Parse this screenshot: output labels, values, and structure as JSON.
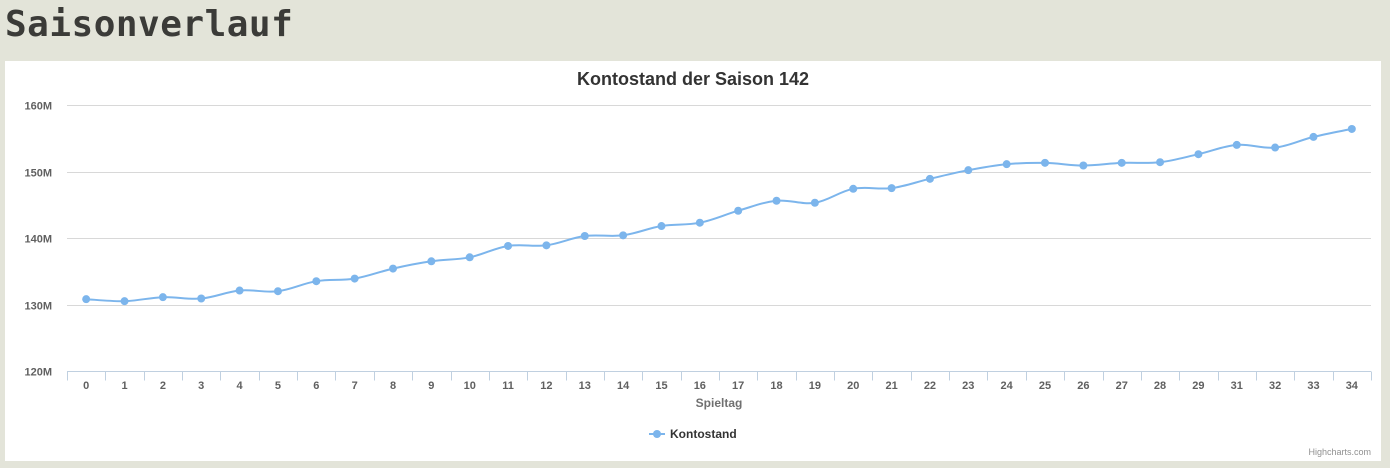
{
  "page": {
    "heading": "Saisonverlauf"
  },
  "colors": {
    "series": "#7cb5ec",
    "grid": "#d8d8d8",
    "axis": "#c0d0e0",
    "background": "#e3e4d9"
  },
  "chart_data": {
    "type": "line",
    "title": "Kontostand der Saison 142",
    "xlabel": "Spieltag",
    "ylabel": "",
    "categories": [
      "0",
      "1",
      "2",
      "3",
      "4",
      "5",
      "6",
      "7",
      "8",
      "9",
      "10",
      "11",
      "12",
      "13",
      "14",
      "15",
      "16",
      "17",
      "18",
      "19",
      "20",
      "21",
      "22",
      "23",
      "24",
      "25",
      "26",
      "27",
      "28",
      "29",
      "31",
      "32",
      "33",
      "34"
    ],
    "series": [
      {
        "name": "Kontostand",
        "values": [
          130.8,
          130.5,
          131.1,
          130.9,
          132.1,
          132.0,
          133.5,
          133.9,
          135.4,
          136.5,
          137.1,
          138.8,
          138.9,
          140.3,
          140.4,
          141.8,
          142.3,
          144.1,
          145.6,
          145.3,
          147.4,
          147.5,
          148.9,
          150.2,
          151.1,
          151.3,
          150.9,
          151.3,
          151.4,
          152.6,
          154.0,
          153.6,
          155.2,
          156.4
        ]
      }
    ],
    "ylim": [
      120,
      160
    ],
    "yticks": [
      {
        "value": 120,
        "label": "120M"
      },
      {
        "value": 130,
        "label": "130M"
      },
      {
        "value": 140,
        "label": "140M"
      },
      {
        "value": 150,
        "label": "150M"
      },
      {
        "value": 160,
        "label": "160M"
      }
    ],
    "grid": true,
    "legend_position": "bottom-center",
    "credits": "Highcharts.com"
  }
}
